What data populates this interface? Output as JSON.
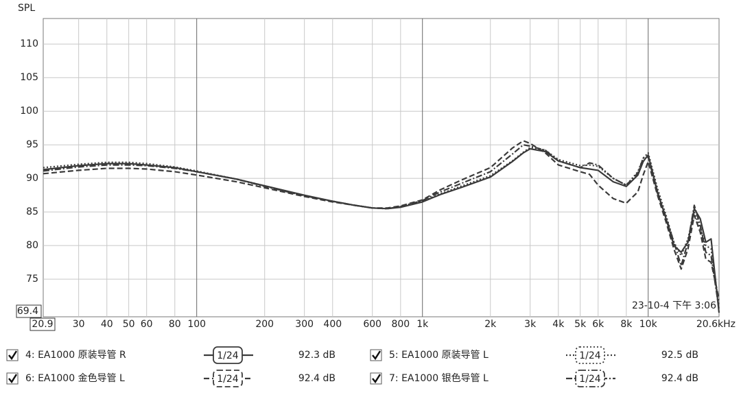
{
  "chart_data": {
    "type": "line",
    "y_label": "SPL",
    "timestamp": "23-10-4 下午 3:06",
    "xscale": "log",
    "grid": true,
    "xlim": [
      20.9,
      20600
    ],
    "ylim": [
      69.4,
      113.8
    ],
    "xticks": [
      {
        "value": 20.9,
        "label": "20.9"
      },
      30,
      40,
      50,
      60,
      80,
      100,
      200,
      300,
      400,
      600,
      800,
      {
        "value": 1000,
        "label": "1k"
      },
      {
        "value": 2000,
        "label": "2k"
      },
      {
        "value": 3000,
        "label": "3k"
      },
      {
        "value": 4000,
        "label": "4k"
      },
      {
        "value": 5000,
        "label": "5k"
      },
      {
        "value": 6000,
        "label": "6k"
      },
      {
        "value": 8000,
        "label": "8k"
      },
      {
        "value": 10000,
        "label": "10k"
      },
      {
        "value": 20600,
        "label": "20.6kHz"
      }
    ],
    "yticks": [
      69.4,
      75,
      80,
      85,
      90,
      95,
      100,
      105,
      110
    ],
    "x": [
      20.9,
      30,
      40,
      50,
      60,
      80,
      100,
      150,
      200,
      300,
      400,
      500,
      600,
      700,
      800,
      1000,
      1200,
      1500,
      2000,
      2500,
      2800,
      3000,
      3500,
      4000,
      5000,
      5500,
      6000,
      7000,
      8000,
      9000,
      9500,
      10000,
      11000,
      12000,
      13000,
      14000,
      15000,
      16000,
      17000,
      18000,
      19000,
      20600
    ],
    "series": [
      {
        "name": "4: EA1000 原装导管 R",
        "color": "#3a3a3a",
        "dash": "solid",
        "smoothing": "1/24",
        "level_label": "92.3 dB",
        "values": [
          91.3,
          91.9,
          92.2,
          92.2,
          92.0,
          91.6,
          91.0,
          89.9,
          88.9,
          87.5,
          86.6,
          86.0,
          85.6,
          85.5,
          85.7,
          86.5,
          87.6,
          88.7,
          90.2,
          92.5,
          93.8,
          94.4,
          94.0,
          92.6,
          91.6,
          91.4,
          91.2,
          89.5,
          88.8,
          90.5,
          92.5,
          93.5,
          88.0,
          84.0,
          80.0,
          79.0,
          80.5,
          85.5,
          84.0,
          80.5,
          81.0,
          70.0
        ]
      },
      {
        "name": "5: EA1000 原装导管 L",
        "color": "#3a3a3a",
        "dash": "dotted",
        "smoothing": "1/24",
        "level_label": "92.5 dB",
        "values": [
          91.6,
          92.1,
          92.4,
          92.4,
          92.2,
          91.7,
          91.1,
          89.9,
          88.9,
          87.4,
          86.6,
          86.0,
          85.6,
          85.5,
          85.8,
          86.6,
          87.7,
          88.9,
          90.4,
          92.6,
          93.9,
          94.6,
          94.2,
          92.8,
          91.9,
          92.0,
          91.8,
          90.0,
          89.0,
          91.0,
          93.0,
          93.8,
          88.5,
          84.5,
          80.5,
          78.5,
          81.0,
          85.0,
          82.5,
          80.0,
          79.5,
          71.0
        ]
      },
      {
        "name": "6: EA1000 金色导管 L",
        "color": "#3a3a3a",
        "dash": "dashed",
        "smoothing": "1/24",
        "level_label": "92.4 dB",
        "values": [
          90.7,
          91.2,
          91.5,
          91.5,
          91.4,
          91.0,
          90.5,
          89.5,
          88.6,
          87.3,
          86.5,
          86.0,
          85.6,
          85.6,
          85.9,
          86.8,
          88.3,
          89.8,
          91.6,
          94.5,
          95.6,
          95.2,
          93.8,
          92.0,
          91.0,
          90.6,
          89.0,
          87.0,
          86.3,
          88.0,
          90.5,
          92.5,
          87.5,
          83.5,
          79.5,
          76.5,
          79.5,
          84.5,
          82.0,
          78.0,
          77.5,
          72.0
        ]
      },
      {
        "name": "7: EA1000 银色导管 L",
        "color": "#3a3a3a",
        "dash": "dashdot",
        "smoothing": "1/24",
        "level_label": "92.4 dB",
        "values": [
          91.1,
          91.7,
          92.0,
          92.0,
          91.9,
          91.5,
          91.0,
          89.9,
          88.8,
          87.4,
          86.6,
          86.0,
          85.6,
          85.5,
          85.8,
          86.7,
          88.0,
          89.3,
          91.0,
          93.6,
          95.0,
          94.8,
          94.2,
          92.6,
          91.6,
          92.3,
          92.0,
          90.0,
          89.0,
          90.8,
          93.0,
          93.2,
          87.8,
          84.2,
          80.5,
          77.0,
          80.5,
          86.0,
          83.0,
          79.0,
          78.5,
          70.5
        ]
      }
    ]
  }
}
